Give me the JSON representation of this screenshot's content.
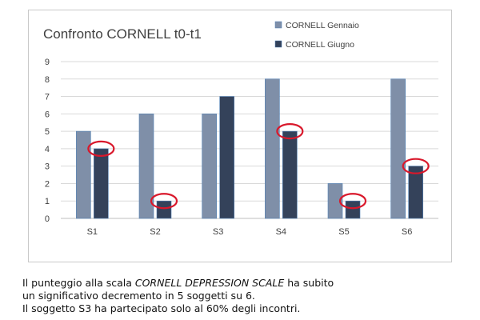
{
  "chart_data": {
    "type": "bar",
    "title": "Confronto CORNELL t0-t1",
    "xlabel": "",
    "ylabel": "",
    "categories": [
      "S1",
      "S2",
      "S3",
      "S4",
      "S5",
      "S6"
    ],
    "series": [
      {
        "name": "CORNELL Gennaio",
        "values": [
          5,
          6,
          6,
          8,
          2,
          8
        ],
        "color": "#7f8fa8"
      },
      {
        "name": "CORNELL Giugno",
        "values": [
          4,
          1,
          7,
          5,
          1,
          3
        ],
        "color": "#34425a"
      }
    ],
    "ylim": [
      0,
      9
    ],
    "yticks": [
      "0",
      "1",
      "2",
      "3",
      "4",
      "5",
      "6",
      "7",
      "8",
      "9"
    ],
    "grid": true,
    "legend_position": "top-right",
    "highlighted": [
      {
        "category": "S1",
        "series": "CORNELL Giugno"
      },
      {
        "category": "S2",
        "series": "CORNELL Giugno"
      },
      {
        "category": "S4",
        "series": "CORNELL Giugno"
      },
      {
        "category": "S5",
        "series": "CORNELL Giugno"
      },
      {
        "category": "S6",
        "series": "CORNELL Giugno"
      }
    ],
    "highlight_color": "#d9182b"
  },
  "caption": {
    "line1_before": "Il punteggio alla scala ",
    "line1_emphasis": "CORNELL DEPRESSION SCALE",
    "line1_after": " ha subito",
    "line2": "un significativo decremento in 5 soggetti su 6.",
    "line3": "Il soggetto S3 ha partecipato solo al 60% degli incontri."
  }
}
